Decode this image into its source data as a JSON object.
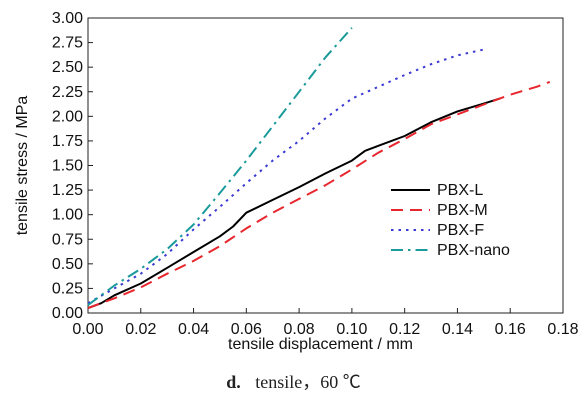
{
  "chart_data": {
    "type": "line",
    "xlabel": "tensile displacement / mm",
    "ylabel": "tensile stress / MPa",
    "xlim": [
      0,
      0.18
    ],
    "ylim": [
      0,
      3.0
    ],
    "xticks": [
      "0.00",
      "0.02",
      "0.04",
      "0.06",
      "0.08",
      "0.10",
      "0.12",
      "0.14",
      "0.16",
      "0.18"
    ],
    "yticks": [
      "0.00",
      "0.25",
      "0.50",
      "0.75",
      "1.00",
      "1.25",
      "1.50",
      "1.75",
      "2.00",
      "2.25",
      "2.50",
      "2.75",
      "3.00"
    ],
    "grid": false,
    "legend_position": "right",
    "series": [
      {
        "name": "PBX-L",
        "color": "#000000",
        "style": "solid",
        "points": [
          [
            0.0,
            0.05
          ],
          [
            0.005,
            0.1
          ],
          [
            0.01,
            0.18
          ],
          [
            0.02,
            0.3
          ],
          [
            0.03,
            0.46
          ],
          [
            0.04,
            0.62
          ],
          [
            0.05,
            0.78
          ],
          [
            0.055,
            0.88
          ],
          [
            0.06,
            1.02
          ],
          [
            0.07,
            1.15
          ],
          [
            0.08,
            1.28
          ],
          [
            0.09,
            1.42
          ],
          [
            0.1,
            1.55
          ],
          [
            0.105,
            1.65
          ],
          [
            0.12,
            1.8
          ],
          [
            0.13,
            1.94
          ],
          [
            0.14,
            2.05
          ],
          [
            0.15,
            2.13
          ],
          [
            0.156,
            2.18
          ]
        ]
      },
      {
        "name": "PBX-M",
        "color": "#e8262d",
        "style": "dashed",
        "points": [
          [
            0.0,
            0.05
          ],
          [
            0.01,
            0.15
          ],
          [
            0.02,
            0.26
          ],
          [
            0.03,
            0.4
          ],
          [
            0.04,
            0.53
          ],
          [
            0.05,
            0.68
          ],
          [
            0.06,
            0.86
          ],
          [
            0.07,
            1.02
          ],
          [
            0.08,
            1.16
          ],
          [
            0.09,
            1.3
          ],
          [
            0.1,
            1.46
          ],
          [
            0.11,
            1.63
          ],
          [
            0.12,
            1.77
          ],
          [
            0.13,
            1.92
          ],
          [
            0.14,
            2.02
          ],
          [
            0.15,
            2.12
          ],
          [
            0.16,
            2.22
          ],
          [
            0.17,
            2.3
          ],
          [
            0.175,
            2.35
          ]
        ]
      },
      {
        "name": "PBX-F",
        "color": "#3a3ad4",
        "style": "dotted",
        "points": [
          [
            0.0,
            0.1
          ],
          [
            0.01,
            0.25
          ],
          [
            0.02,
            0.4
          ],
          [
            0.03,
            0.6
          ],
          [
            0.04,
            0.85
          ],
          [
            0.05,
            1.08
          ],
          [
            0.06,
            1.32
          ],
          [
            0.07,
            1.55
          ],
          [
            0.08,
            1.75
          ],
          [
            0.09,
            1.98
          ],
          [
            0.1,
            2.18
          ],
          [
            0.11,
            2.3
          ],
          [
            0.12,
            2.42
          ],
          [
            0.13,
            2.53
          ],
          [
            0.14,
            2.62
          ],
          [
            0.15,
            2.68
          ]
        ]
      },
      {
        "name": "PBX-nano",
        "color": "#1a9a9a",
        "style": "dashdot",
        "points": [
          [
            0.0,
            0.08
          ],
          [
            0.01,
            0.28
          ],
          [
            0.02,
            0.45
          ],
          [
            0.03,
            0.65
          ],
          [
            0.04,
            0.9
          ],
          [
            0.05,
            1.22
          ],
          [
            0.06,
            1.55
          ],
          [
            0.07,
            1.9
          ],
          [
            0.08,
            2.25
          ],
          [
            0.09,
            2.6
          ],
          [
            0.1,
            2.9
          ]
        ]
      }
    ]
  },
  "caption": {
    "label": "d.",
    "text": "tensile，60 ℃"
  }
}
